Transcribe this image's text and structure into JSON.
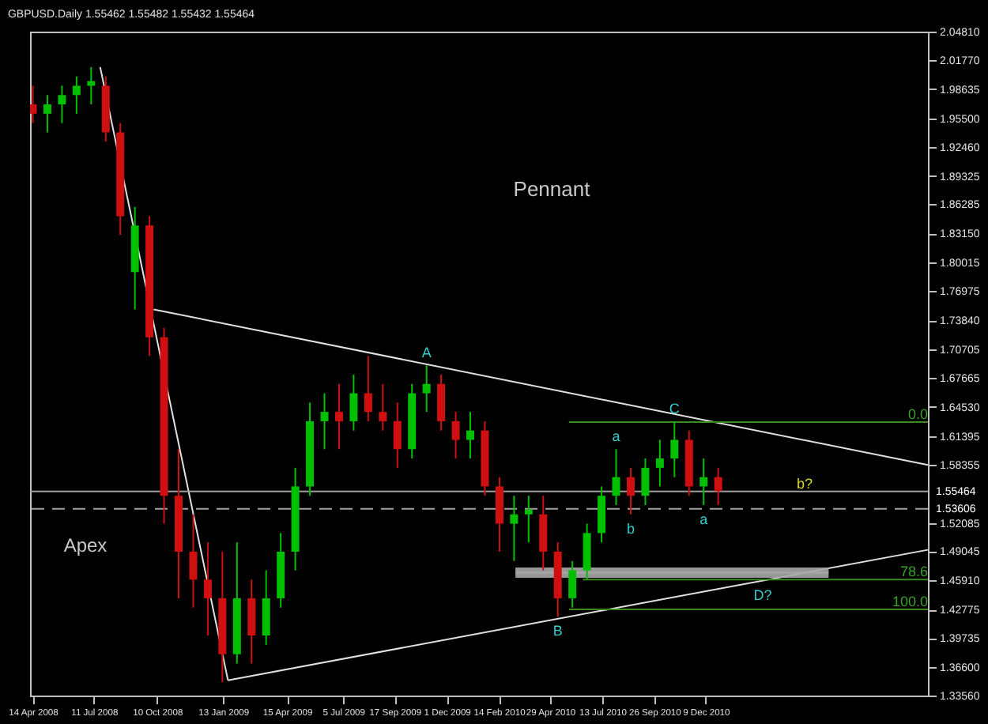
{
  "chart_data": {
    "type": "candlestick",
    "title": "GBPUSD.Daily  1.55462 1.55482 1.55432 1.55464",
    "x": [
      "2008-04-14",
      "2008-05-05",
      "2008-05-26",
      "2008-06-16",
      "2008-07-07",
      "2008-07-28",
      "2008-08-18",
      "2008-09-08",
      "2008-09-29",
      "2008-10-20",
      "2008-11-10",
      "2008-12-01",
      "2008-12-22",
      "2009-01-12",
      "2009-02-02",
      "2009-02-23",
      "2009-03-16",
      "2009-04-06",
      "2009-04-27",
      "2009-05-18",
      "2009-06-08",
      "2009-06-29",
      "2009-07-20",
      "2009-08-10",
      "2009-08-31",
      "2009-09-21",
      "2009-10-12",
      "2009-11-02",
      "2009-11-23",
      "2009-12-14",
      "2010-01-04",
      "2010-01-25",
      "2010-02-15",
      "2010-03-08",
      "2010-03-29",
      "2010-04-19",
      "2010-05-10",
      "2010-05-31",
      "2010-06-21",
      "2010-07-12",
      "2010-08-02",
      "2010-08-23",
      "2010-09-13",
      "2010-10-04",
      "2010-10-25",
      "2010-11-15",
      "2010-12-06",
      "2010-12-27"
    ],
    "ohlc": [
      [
        1.97,
        1.99,
        1.95,
        1.96
      ],
      [
        1.96,
        1.98,
        1.94,
        1.97
      ],
      [
        1.97,
        1.99,
        1.95,
        1.98
      ],
      [
        1.98,
        2.0,
        1.96,
        1.99
      ],
      [
        1.99,
        2.01,
        1.97,
        1.995
      ],
      [
        1.99,
        2.0,
        1.93,
        1.94
      ],
      [
        1.94,
        1.95,
        1.83,
        1.85
      ],
      [
        1.79,
        1.86,
        1.75,
        1.84
      ],
      [
        1.84,
        1.85,
        1.7,
        1.72
      ],
      [
        1.72,
        1.73,
        1.52,
        1.55
      ],
      [
        1.55,
        1.6,
        1.44,
        1.49
      ],
      [
        1.49,
        1.53,
        1.43,
        1.46
      ],
      [
        1.46,
        1.5,
        1.4,
        1.44
      ],
      [
        1.44,
        1.49,
        1.35,
        1.38
      ],
      [
        1.38,
        1.5,
        1.37,
        1.44
      ],
      [
        1.44,
        1.46,
        1.37,
        1.4
      ],
      [
        1.4,
        1.47,
        1.39,
        1.44
      ],
      [
        1.44,
        1.51,
        1.43,
        1.49
      ],
      [
        1.49,
        1.58,
        1.47,
        1.56
      ],
      [
        1.56,
        1.65,
        1.55,
        1.63
      ],
      [
        1.63,
        1.66,
        1.6,
        1.64
      ],
      [
        1.64,
        1.67,
        1.6,
        1.63
      ],
      [
        1.63,
        1.68,
        1.62,
        1.66
      ],
      [
        1.66,
        1.7,
        1.63,
        1.64
      ],
      [
        1.64,
        1.67,
        1.62,
        1.63
      ],
      [
        1.63,
        1.65,
        1.58,
        1.6
      ],
      [
        1.6,
        1.67,
        1.59,
        1.66
      ],
      [
        1.66,
        1.69,
        1.64,
        1.67
      ],
      [
        1.67,
        1.68,
        1.62,
        1.63
      ],
      [
        1.63,
        1.64,
        1.59,
        1.61
      ],
      [
        1.61,
        1.64,
        1.59,
        1.62
      ],
      [
        1.62,
        1.63,
        1.55,
        1.56
      ],
      [
        1.56,
        1.57,
        1.49,
        1.52
      ],
      [
        1.52,
        1.55,
        1.48,
        1.53
      ],
      [
        1.53,
        1.55,
        1.5,
        1.535
      ],
      [
        1.53,
        1.55,
        1.47,
        1.49
      ],
      [
        1.49,
        1.5,
        1.42,
        1.44
      ],
      [
        1.44,
        1.48,
        1.43,
        1.47
      ],
      [
        1.47,
        1.52,
        1.46,
        1.51
      ],
      [
        1.51,
        1.56,
        1.5,
        1.55
      ],
      [
        1.55,
        1.6,
        1.54,
        1.57
      ],
      [
        1.57,
        1.58,
        1.53,
        1.55
      ],
      [
        1.55,
        1.59,
        1.54,
        1.58
      ],
      [
        1.58,
        1.61,
        1.56,
        1.59
      ],
      [
        1.59,
        1.63,
        1.57,
        1.61
      ],
      [
        1.61,
        1.62,
        1.55,
        1.56
      ],
      [
        1.56,
        1.59,
        1.54,
        1.57
      ],
      [
        1.57,
        1.58,
        1.54,
        1.555
      ]
    ],
    "colors": [
      "#d01010",
      "#00c000",
      "#00c000",
      "#00c000",
      "#00c000",
      "#d01010",
      "#d01010",
      "#00c000",
      "#d01010",
      "#d01010",
      "#d01010",
      "#d01010",
      "#d01010",
      "#d01010",
      "#00c000",
      "#d01010",
      "#00c000",
      "#00c000",
      "#00c000",
      "#00c000",
      "#00c000",
      "#d01010",
      "#00c000",
      "#d01010",
      "#d01010",
      "#d01010",
      "#00c000",
      "#00c000",
      "#d01010",
      "#d01010",
      "#00c000",
      "#d01010",
      "#d01010",
      "#00c000",
      "#00c000",
      "#d01010",
      "#d01010",
      "#00c000",
      "#00c000",
      "#00c000",
      "#00c000",
      "#d01010",
      "#00c000",
      "#00c000",
      "#00c000",
      "#d01010",
      "#00c000",
      "#d01010"
    ],
    "series": [
      {
        "type": "line",
        "color": "#e0e0e0",
        "x": [
          "2008-10-05",
          "2011-10-25"
        ],
        "values": [
          1.75,
          1.583
        ]
      },
      {
        "type": "line",
        "color": "#e0e0e0",
        "x": [
          "2009-01-20",
          "2011-10-25"
        ],
        "values": [
          1.352,
          1.492
        ]
      },
      {
        "type": "line",
        "color": "#e0e0e0",
        "x": [
          "2008-07-20",
          "2009-01-20"
        ],
        "values": [
          2.01,
          1.352
        ]
      },
      {
        "type": "line",
        "color": "#3a8a1e",
        "x": [
          "2010-05-26",
          "2011-10-25"
        ],
        "values": [
          1.629,
          1.629
        ]
      },
      {
        "type": "line",
        "color": "#3a8a1e",
        "x": [
          "2010-06-15",
          "2011-10-25"
        ],
        "values": [
          1.46,
          1.46
        ]
      },
      {
        "type": "line",
        "color": "#3a8a1e",
        "x": [
          "2010-05-26",
          "2011-10-25"
        ],
        "values": [
          1.428,
          1.428
        ]
      },
      {
        "type": "line",
        "color": "#a8a8a8",
        "x": [
          "2010-03-10",
          "2011-06-04"
        ],
        "values": [
          1.4675,
          1.4675
        ],
        "lower": [
          1.462,
          1.462
        ],
        "upper": [
          1.473,
          1.473
        ]
      }
    ],
    "ref_lines": [
      {
        "axis": "y",
        "value": 1.55464,
        "label": "1.55464",
        "color": "#a0a0a0",
        "line_style": "solid"
      },
      {
        "axis": "y",
        "value": 1.53606,
        "label": "1.53606",
        "color": "#a0a0a0",
        "line_style": "dashed"
      }
    ],
    "annotations": [
      "Pennant",
      "Apex",
      "b?",
      {
        "text": "A",
        "x": "2009-11-02",
        "y": 1.69
      },
      {
        "text": "B",
        "x": "2010-05-10",
        "y": 1.42
      },
      {
        "text": "C",
        "x": "2010-10-25",
        "y": 1.63
      },
      {
        "text": "D?",
        "x": "2011-03-01",
        "y": 1.459
      },
      {
        "text": "a",
        "x": "2010-08-02",
        "y": 1.6
      },
      {
        "text": "b",
        "x": "2010-08-23",
        "y": 1.53
      },
      {
        "text": "a",
        "x": "2010-12-06",
        "y": 1.54
      },
      {
        "text": "0.0",
        "x": "2011-10-25",
        "y": 1.629
      },
      {
        "text": "78.6",
        "x": "2011-10-25",
        "y": 1.46
      },
      {
        "text": "100.0",
        "x": "2011-10-25",
        "y": 1.428
      }
    ],
    "xlim": [
      "2008-04-10",
      "2011-10-25"
    ],
    "xticks": [
      {
        "value": "2008-04-14",
        "label": "14 Apr 2008"
      },
      {
        "value": "2008-07-11",
        "label": "11 Jul 2008"
      },
      {
        "value": "2008-10-10",
        "label": "10 Oct 2008"
      },
      {
        "value": "2009-01-13",
        "label": "13 Jan 2009"
      },
      {
        "value": "2009-04-15",
        "label": "15 Apr 2009"
      },
      {
        "value": "2009-07-05",
        "label": "5 Jul 2009"
      },
      {
        "value": "2009-09-17",
        "label": "17 Sep 2009"
      },
      {
        "value": "2009-12-01",
        "label": "1 Dec 2009"
      },
      {
        "value": "2010-02-14",
        "label": "14 Feb 2010"
      },
      {
        "value": "2010-04-29",
        "label": "29 Apr 2010"
      },
      {
        "value": "2010-07-13",
        "label": "13 Jul 2010"
      },
      {
        "value": "2010-09-26",
        "label": "26 Sep 2010"
      },
      {
        "value": "2010-12-09",
        "label": "9 Dec 2010"
      }
    ],
    "ylim": [
      1.3356,
      2.0481
    ],
    "yticks": [
      {
        "value": 1.3356,
        "label": "1.33560"
      },
      {
        "value": 1.366,
        "label": "1.36600"
      },
      {
        "value": 1.39735,
        "label": "1.39735"
      },
      {
        "value": 1.42775,
        "label": "1.42775"
      },
      {
        "value": 1.4591,
        "label": "1.45910"
      },
      {
        "value": 1.49045,
        "label": "1.49045"
      },
      {
        "value": 1.52085,
        "label": "1.52085"
      },
      {
        "value": 1.58355,
        "label": "1.58355"
      },
      {
        "value": 1.61395,
        "label": "1.61395"
      },
      {
        "value": 1.6453,
        "label": "1.64530"
      },
      {
        "value": 1.67665,
        "label": "1.67665"
      },
      {
        "value": 1.70705,
        "label": "1.70705"
      },
      {
        "value": 1.7384,
        "label": "1.73840"
      },
      {
        "value": 1.76975,
        "label": "1.76975"
      },
      {
        "value": 1.80015,
        "label": "1.80015"
      },
      {
        "value": 1.8315,
        "label": "1.83150"
      },
      {
        "value": 1.86285,
        "label": "1.86285"
      },
      {
        "value": 1.89325,
        "label": "1.89325"
      },
      {
        "value": 1.9246,
        "label": "1.92460"
      },
      {
        "value": 1.955,
        "label": "1.95500"
      },
      {
        "value": 1.98635,
        "label": "1.98635"
      },
      {
        "value": 2.0177,
        "label": "2.01770"
      },
      {
        "value": 2.0481,
        "label": "2.04810"
      }
    ],
    "grid": false,
    "legend": false
  }
}
